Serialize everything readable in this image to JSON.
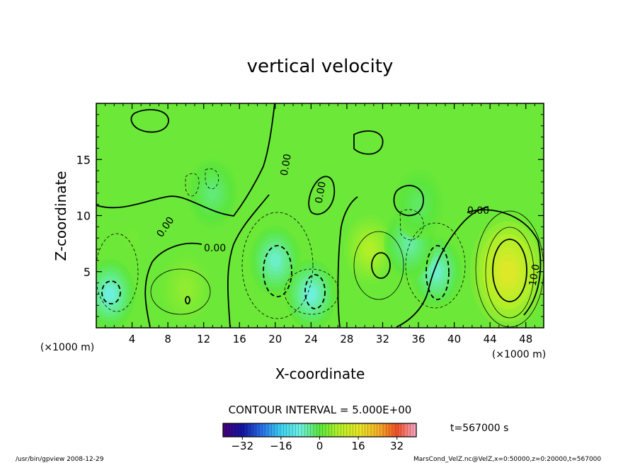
{
  "chart_data": {
    "type": "heatmap",
    "title": "vertical velocity",
    "xlabel": "X-coordinate",
    "ylabel": "Z-coordinate",
    "x_unit": "(×1000 m)",
    "z_unit": "(×1000 m)",
    "xlim": [
      0,
      50
    ],
    "ylim": [
      0,
      20
    ],
    "x_ticks": [
      4,
      8,
      12,
      16,
      20,
      24,
      28,
      32,
      36,
      40,
      44,
      48
    ],
    "y_ticks": [
      5,
      10,
      15
    ],
    "contour_interval_label": "CONTOUR INTERVAL = 5.000E+00",
    "contour_labels": [
      "0.00",
      "0.00",
      "0.00",
      "0.00",
      "0.00",
      "10.0"
    ],
    "time_label": "t=567000 s",
    "colorbar": {
      "range": [
        -40,
        40
      ],
      "ticks": [
        -32,
        -16,
        0,
        16,
        32
      ]
    },
    "features": [
      {
        "x": 46,
        "z": 5,
        "value": 15
      },
      {
        "x": 30.5,
        "z": 7,
        "value": 8
      },
      {
        "x": 10,
        "z": 3.5,
        "value": 5
      },
      {
        "x": 4,
        "z": 8,
        "value": 2
      },
      {
        "x": 20,
        "z": 6,
        "value": -7
      },
      {
        "x": 24,
        "z": 3,
        "value": -8
      },
      {
        "x": 38,
        "z": 5,
        "value": -7
      },
      {
        "x": 35,
        "z": 7.5,
        "value": -5
      },
      {
        "x": 1.5,
        "z": 3,
        "value": -8
      },
      {
        "x": 13,
        "z": 12,
        "value": -3
      },
      {
        "x": 36,
        "z": 11,
        "value": -2
      }
    ]
  },
  "footer": {
    "left": "/usr/bin/gpview   2008-12-29",
    "right": "MarsCond_VelZ.nc@VelZ,x=0:50000,z=0:20000,t=567000"
  }
}
